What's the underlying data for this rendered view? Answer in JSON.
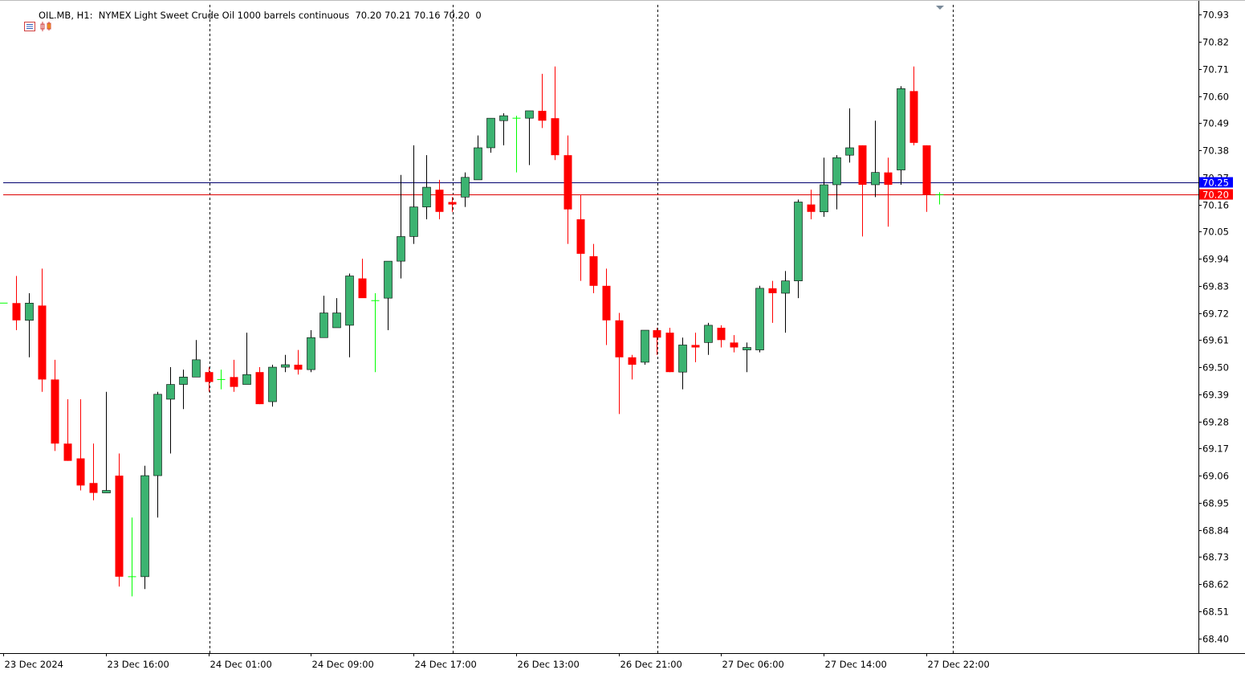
{
  "header": {
    "symbol": "OIL.MB, H1:",
    "description": "NYMEX Light Sweet Crude Oil 1000 barrels continuous",
    "ohlc": "70.20 70.21 70.16 70.20",
    "volume": "0"
  },
  "colors": {
    "bull": "#3cb371",
    "bear": "#ff0000",
    "doji": "#00ff00",
    "bid_line": "#dd0000",
    "ask_line": "#00006e",
    "bid_label_bg": "#ff0000",
    "ask_label_bg": "#0000ff",
    "grid": "#000000",
    "axis": "#000000"
  },
  "chart_data": {
    "type": "candlestick",
    "timeframe": "H1",
    "grid": "vertical dashed",
    "y_ticks": [
      "70.93",
      "70.82",
      "70.71",
      "70.60",
      "70.49",
      "70.38",
      "70.27",
      "70.16",
      "70.05",
      "69.94",
      "69.83",
      "69.72",
      "69.61",
      "69.50",
      "69.39",
      "69.28",
      "69.17",
      "69.06",
      "68.95",
      "68.84",
      "68.73",
      "68.62",
      "68.51",
      "68.40"
    ],
    "ylim": [
      68.34,
      70.97
    ],
    "x_ticks": [
      {
        "bar": 0,
        "label": "23 Dec 2024"
      },
      {
        "bar": 8,
        "label": "23 Dec 16:00"
      },
      {
        "bar": 16,
        "label": "24 Dec 01:00"
      },
      {
        "bar": 24,
        "label": "24 Dec 09:00"
      },
      {
        "bar": 32,
        "label": "24 Dec 17:00"
      },
      {
        "bar": 40,
        "label": "26 Dec 13:00"
      },
      {
        "bar": 48,
        "label": "26 Dec 21:00"
      },
      {
        "bar": 56,
        "label": "27 Dec 06:00"
      },
      {
        "bar": 64,
        "label": "27 Dec 14:00"
      },
      {
        "bar": 72,
        "label": "27 Dec 22:00"
      }
    ],
    "period_separators": [
      16,
      35,
      51,
      74
    ],
    "ask_price": "70.25",
    "bid_price": "70.20",
    "candles": [
      {
        "o": 69.76,
        "h": 69.76,
        "l": 69.76,
        "c": 69.76
      },
      {
        "o": 69.76,
        "h": 69.87,
        "l": 69.65,
        "c": 69.69
      },
      {
        "o": 69.69,
        "h": 69.8,
        "l": 69.54,
        "c": 69.76
      },
      {
        "o": 69.75,
        "h": 69.9,
        "l": 69.4,
        "c": 69.45
      },
      {
        "o": 69.45,
        "h": 69.53,
        "l": 69.16,
        "c": 69.19
      },
      {
        "o": 69.19,
        "h": 69.37,
        "l": 69.12,
        "c": 69.12
      },
      {
        "o": 69.13,
        "h": 69.37,
        "l": 69.0,
        "c": 69.02
      },
      {
        "o": 69.03,
        "h": 69.19,
        "l": 68.96,
        "c": 68.99
      },
      {
        "o": 68.99,
        "h": 69.4,
        "l": 68.99,
        "c": 69.0
      },
      {
        "o": 69.06,
        "h": 69.15,
        "l": 68.61,
        "c": 68.65
      },
      {
        "o": 68.65,
        "h": 68.89,
        "l": 68.57,
        "c": 68.65
      },
      {
        "o": 68.65,
        "h": 69.1,
        "l": 68.6,
        "c": 69.06
      },
      {
        "o": 69.06,
        "h": 69.4,
        "l": 68.89,
        "c": 69.39
      },
      {
        "o": 69.37,
        "h": 69.5,
        "l": 69.15,
        "c": 69.43
      },
      {
        "o": 69.43,
        "h": 69.49,
        "l": 69.33,
        "c": 69.46
      },
      {
        "o": 69.46,
        "h": 69.61,
        "l": 69.46,
        "c": 69.53
      },
      {
        "o": 69.48,
        "h": 69.5,
        "l": 69.4,
        "c": 69.44
      },
      {
        "o": 69.45,
        "h": 69.49,
        "l": 69.41,
        "c": 69.45
      },
      {
        "o": 69.46,
        "h": 69.53,
        "l": 69.4,
        "c": 69.42
      },
      {
        "o": 69.43,
        "h": 69.64,
        "l": 69.43,
        "c": 69.47
      },
      {
        "o": 69.48,
        "h": 69.5,
        "l": 69.35,
        "c": 69.35
      },
      {
        "o": 69.36,
        "h": 69.51,
        "l": 69.34,
        "c": 69.5
      },
      {
        "o": 69.5,
        "h": 69.55,
        "l": 69.48,
        "c": 69.51
      },
      {
        "o": 69.51,
        "h": 69.57,
        "l": 69.47,
        "c": 69.49
      },
      {
        "o": 69.49,
        "h": 69.65,
        "l": 69.48,
        "c": 69.62
      },
      {
        "o": 69.62,
        "h": 69.79,
        "l": 69.62,
        "c": 69.72
      },
      {
        "o": 69.66,
        "h": 69.78,
        "l": 69.66,
        "c": 69.72
      },
      {
        "o": 69.67,
        "h": 69.88,
        "l": 69.54,
        "c": 69.87
      },
      {
        "o": 69.86,
        "h": 69.94,
        "l": 69.79,
        "c": 69.78
      },
      {
        "o": 69.77,
        "h": 69.8,
        "l": 69.48,
        "c": 69.77
      },
      {
        "o": 69.78,
        "h": 69.92,
        "l": 69.65,
        "c": 69.93
      },
      {
        "o": 69.93,
        "h": 70.28,
        "l": 69.86,
        "c": 70.03
      },
      {
        "o": 70.03,
        "h": 70.4,
        "l": 70.0,
        "c": 70.15
      },
      {
        "o": 70.15,
        "h": 70.36,
        "l": 70.1,
        "c": 70.23
      },
      {
        "o": 70.22,
        "h": 70.26,
        "l": 70.1,
        "c": 70.13
      },
      {
        "o": 70.17,
        "h": 70.19,
        "l": 70.13,
        "c": 70.16
      },
      {
        "o": 70.19,
        "h": 70.29,
        "l": 70.15,
        "c": 70.27
      },
      {
        "o": 70.26,
        "h": 70.44,
        "l": 70.26,
        "c": 70.39
      },
      {
        "o": 70.39,
        "h": 70.51,
        "l": 70.37,
        "c": 70.51
      },
      {
        "o": 70.5,
        "h": 70.53,
        "l": 70.4,
        "c": 70.52
      },
      {
        "o": 70.51,
        "h": 70.52,
        "l": 70.29,
        "c": 70.51
      },
      {
        "o": 70.51,
        "h": 70.53,
        "l": 70.32,
        "c": 70.54
      },
      {
        "o": 70.54,
        "h": 70.69,
        "l": 70.47,
        "c": 70.5
      },
      {
        "o": 70.51,
        "h": 70.72,
        "l": 70.34,
        "c": 70.36
      },
      {
        "o": 70.36,
        "h": 70.44,
        "l": 70.0,
        "c": 70.14
      },
      {
        "o": 70.1,
        "h": 70.2,
        "l": 69.85,
        "c": 69.96
      },
      {
        "o": 69.95,
        "h": 70.0,
        "l": 69.8,
        "c": 69.83
      },
      {
        "o": 69.83,
        "h": 69.9,
        "l": 69.59,
        "c": 69.69
      },
      {
        "o": 69.69,
        "h": 69.72,
        "l": 69.31,
        "c": 69.54
      },
      {
        "o": 69.54,
        "h": 69.55,
        "l": 69.45,
        "c": 69.51
      },
      {
        "o": 69.52,
        "h": 69.65,
        "l": 69.51,
        "c": 69.65
      },
      {
        "o": 69.65,
        "h": 69.66,
        "l": 69.55,
        "c": 69.62
      },
      {
        "o": 69.64,
        "h": 69.66,
        "l": 69.48,
        "c": 69.48
      },
      {
        "o": 69.48,
        "h": 69.62,
        "l": 69.41,
        "c": 69.59
      },
      {
        "o": 69.59,
        "h": 69.64,
        "l": 69.52,
        "c": 69.58
      },
      {
        "o": 69.6,
        "h": 69.68,
        "l": 69.55,
        "c": 69.67
      },
      {
        "o": 69.66,
        "h": 69.67,
        "l": 69.58,
        "c": 69.61
      },
      {
        "o": 69.6,
        "h": 69.63,
        "l": 69.56,
        "c": 69.58
      },
      {
        "o": 69.57,
        "h": 69.6,
        "l": 69.48,
        "c": 69.58
      },
      {
        "o": 69.57,
        "h": 69.83,
        "l": 69.56,
        "c": 69.82
      },
      {
        "o": 69.82,
        "h": 69.85,
        "l": 69.68,
        "c": 69.8
      },
      {
        "o": 69.8,
        "h": 69.89,
        "l": 69.64,
        "c": 69.85
      },
      {
        "o": 69.85,
        "h": 70.18,
        "l": 69.78,
        "c": 70.17
      },
      {
        "o": 70.16,
        "h": 70.22,
        "l": 70.1,
        "c": 70.13
      },
      {
        "o": 70.13,
        "h": 70.35,
        "l": 70.11,
        "c": 70.24
      },
      {
        "o": 70.24,
        "h": 70.36,
        "l": 70.14,
        "c": 70.35
      },
      {
        "o": 70.36,
        "h": 70.55,
        "l": 70.33,
        "c": 70.39
      },
      {
        "o": 70.4,
        "h": 70.4,
        "l": 70.03,
        "c": 70.24
      },
      {
        "o": 70.24,
        "h": 70.5,
        "l": 70.19,
        "c": 70.29
      },
      {
        "o": 70.29,
        "h": 70.35,
        "l": 70.07,
        "c": 70.24
      },
      {
        "o": 70.3,
        "h": 70.64,
        "l": 70.24,
        "c": 70.63
      },
      {
        "o": 70.62,
        "h": 70.72,
        "l": 70.4,
        "c": 70.41
      },
      {
        "o": 70.4,
        "h": 70.4,
        "l": 70.13,
        "c": 70.2
      },
      {
        "o": 70.2,
        "h": 70.21,
        "l": 70.16,
        "c": 70.2
      }
    ]
  }
}
